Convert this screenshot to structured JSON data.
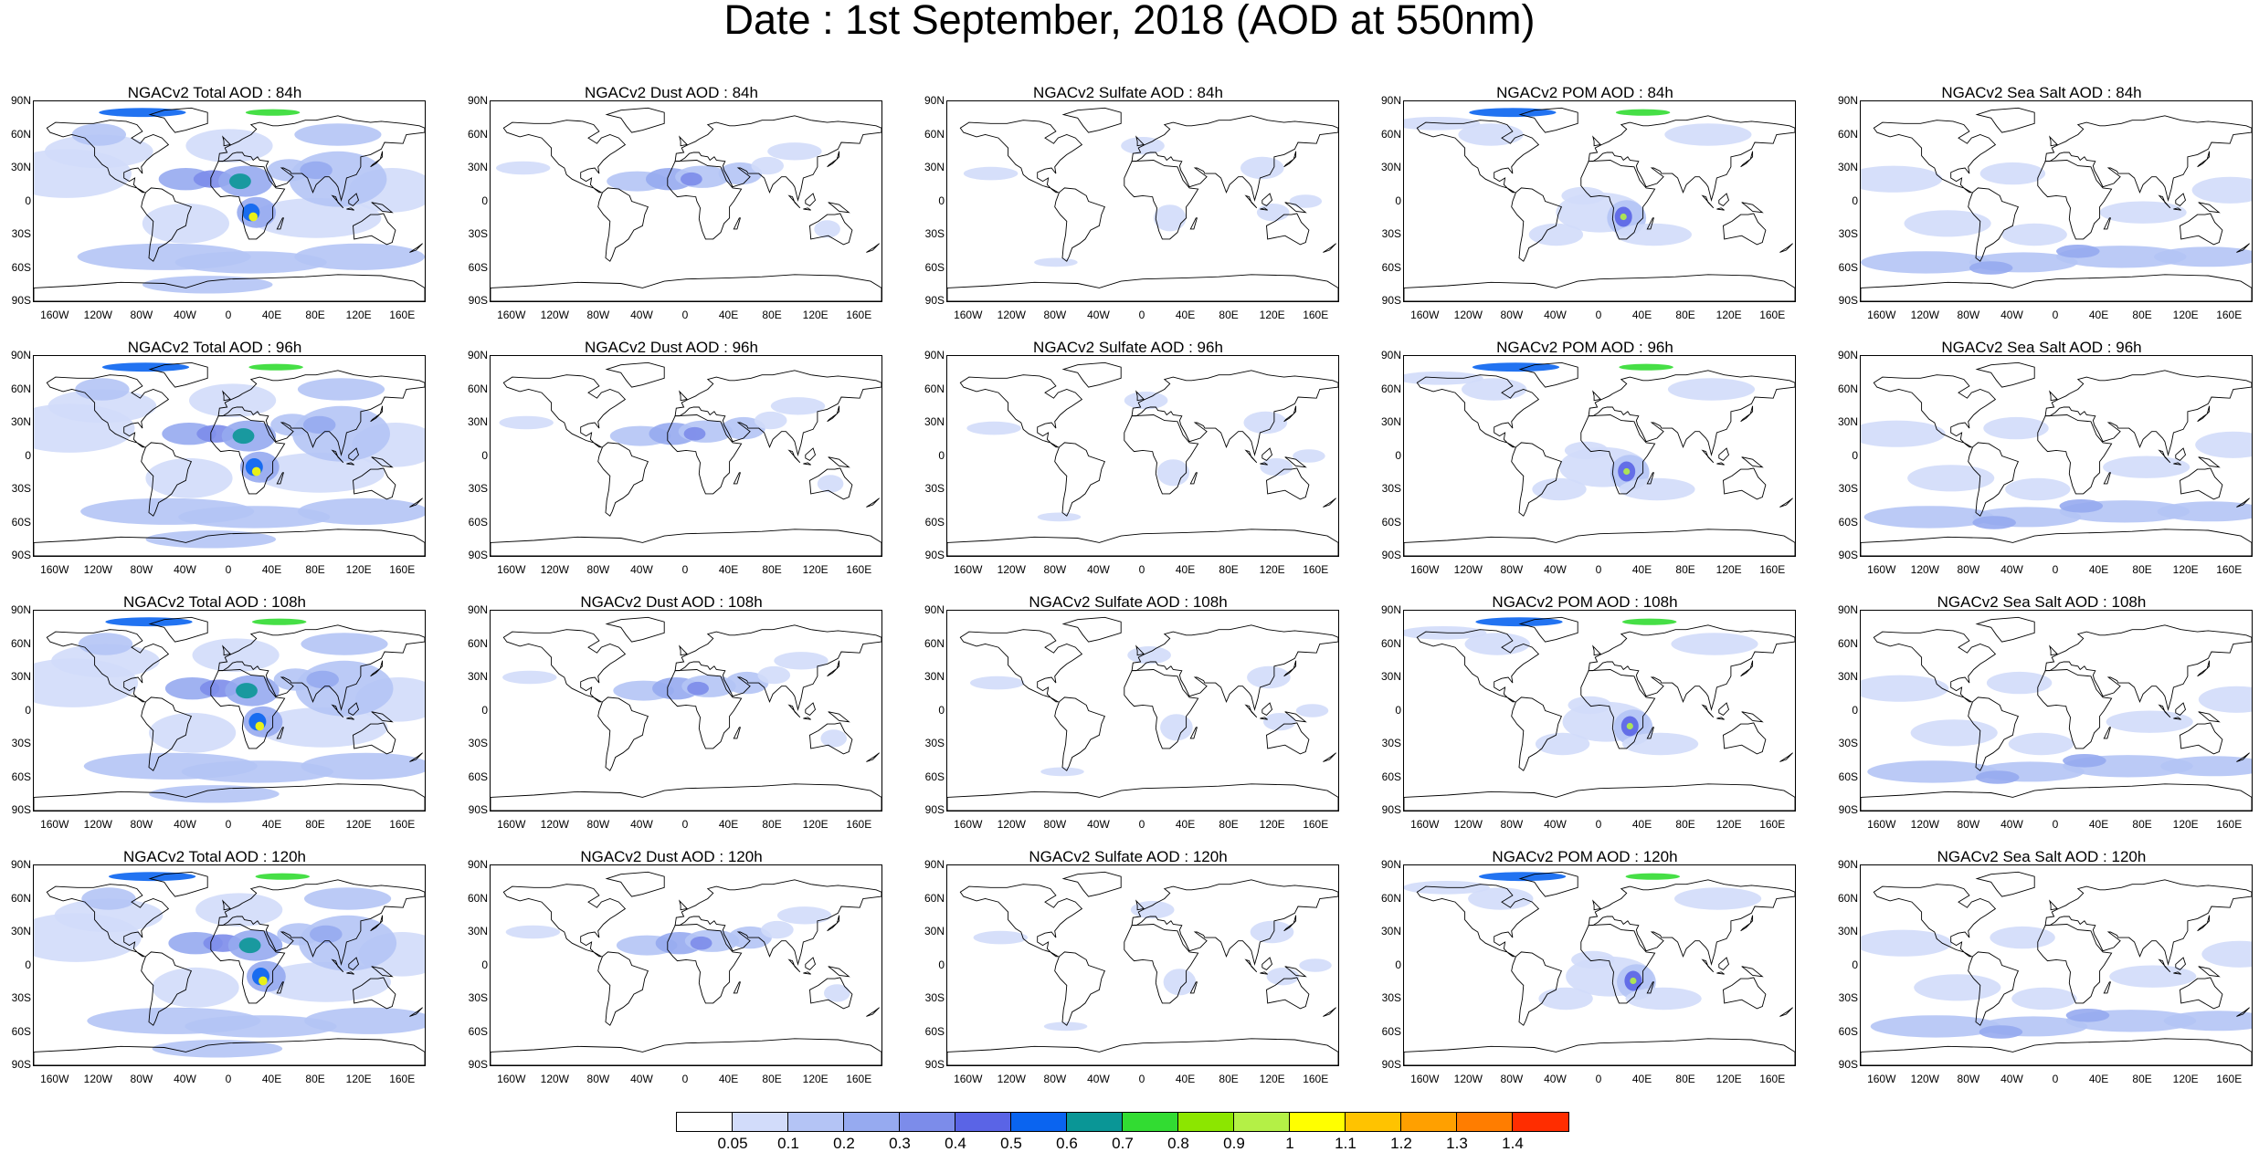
{
  "title": "Date : 1st September, 2018 (AOD at 550nm)",
  "lat_ticks": [
    "90N",
    "60N",
    "30N",
    "0",
    "30S",
    "60S",
    "90S"
  ],
  "lon_ticks": [
    "160W",
    "120W",
    "80W",
    "40W",
    "0",
    "40E",
    "80E",
    "120E",
    "160E"
  ],
  "panels": [
    {
      "title": "NGACv2 Total AOD : 84h",
      "field": "total",
      "lead_hours": 84
    },
    {
      "title": "NGACv2 Dust AOD : 84h",
      "field": "dust",
      "lead_hours": 84
    },
    {
      "title": "NGACv2 Sulfate AOD : 84h",
      "field": "sulfate",
      "lead_hours": 84
    },
    {
      "title": "NGACv2 POM AOD : 84h",
      "field": "pom",
      "lead_hours": 84
    },
    {
      "title": "NGACv2 Sea Salt AOD : 84h",
      "field": "seasalt",
      "lead_hours": 84
    },
    {
      "title": "NGACv2 Total AOD : 96h",
      "field": "total",
      "lead_hours": 96
    },
    {
      "title": "NGACv2 Dust AOD : 96h",
      "field": "dust",
      "lead_hours": 96
    },
    {
      "title": "NGACv2 Sulfate AOD : 96h",
      "field": "sulfate",
      "lead_hours": 96
    },
    {
      "title": "NGACv2 POM AOD : 96h",
      "field": "pom",
      "lead_hours": 96
    },
    {
      "title": "NGACv2 Sea Salt AOD : 96h",
      "field": "seasalt",
      "lead_hours": 96
    },
    {
      "title": "NGACv2 Total AOD : 108h",
      "field": "total",
      "lead_hours": 108
    },
    {
      "title": "NGACv2 Dust AOD : 108h",
      "field": "dust",
      "lead_hours": 108
    },
    {
      "title": "NGACv2 Sulfate AOD : 108h",
      "field": "sulfate",
      "lead_hours": 108
    },
    {
      "title": "NGACv2 POM AOD : 108h",
      "field": "pom",
      "lead_hours": 108
    },
    {
      "title": "NGACv2 Sea Salt AOD : 108h",
      "field": "seasalt",
      "lead_hours": 108
    },
    {
      "title": "NGACv2 Total AOD : 120h",
      "field": "total",
      "lead_hours": 120
    },
    {
      "title": "NGACv2 Dust AOD : 120h",
      "field": "dust",
      "lead_hours": 120
    },
    {
      "title": "NGACv2 Sulfate AOD : 120h",
      "field": "sulfate",
      "lead_hours": 120
    },
    {
      "title": "NGACv2 POM AOD : 120h",
      "field": "pom",
      "lead_hours": 120
    },
    {
      "title": "NGACv2 Sea Salt  AOD : 120h",
      "field": "seasalt",
      "lead_hours": 120
    }
  ],
  "colorbar": {
    "labels": [
      "0.05",
      "0.1",
      "0.2",
      "0.3",
      "0.4",
      "0.5",
      "0.6",
      "0.7",
      "0.8",
      "0.9",
      "1",
      "1.1",
      "1.2",
      "1.3",
      "1.4"
    ],
    "colors": [
      "#ffffff",
      "#d2dcfa",
      "#b4c4f5",
      "#96aaf0",
      "#7c8cea",
      "#5a64e6",
      "#0a64f0",
      "#0a9696",
      "#32dc32",
      "#8ce600",
      "#b4f046",
      "#ffff00",
      "#ffc300",
      "#ffa000",
      "#ff7d00",
      "#ff2d00"
    ]
  }
}
